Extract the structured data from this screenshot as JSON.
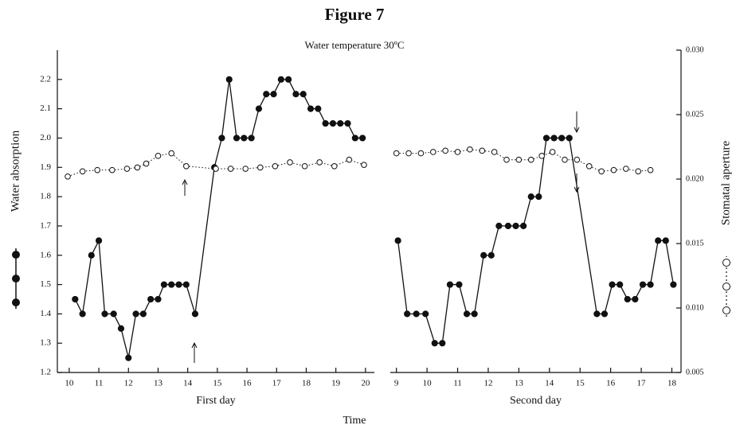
{
  "chart_data": {
    "type": "line",
    "title": "Figure 7",
    "subtitle": "Water temperature 30ºC",
    "xlabel": "Time",
    "ylabel": "Water absorption",
    "y2label": "Stomatal aperture",
    "ylim": [
      1.2,
      2.3
    ],
    "yticks": [
      1.2,
      1.3,
      1.4,
      1.5,
      1.6,
      1.7,
      1.8,
      1.9,
      {
        "value": 2,
        "label": "2.0"
      },
      2.1,
      2.2
    ],
    "y2lim": [
      0.005,
      0.03
    ],
    "y2ticks": [
      {
        "value": 0.005,
        "label": "0.005"
      },
      {
        "value": 0.01,
        "label": "0.010"
      },
      {
        "value": 0.015,
        "label": "0.015"
      },
      {
        "value": 0.02,
        "label": "0.020"
      },
      {
        "value": 0.025,
        "label": "0.025"
      },
      {
        "value": 0.03,
        "label": "0.030"
      }
    ],
    "panels": [
      {
        "xlabel": "First day",
        "xlim": [
          9.6,
          20.3
        ],
        "xticks": [
          10,
          11,
          12,
          13,
          14,
          15,
          16,
          17,
          18,
          19,
          20
        ],
        "series": [
          {
            "color": "#111111",
            "marker": "filled",
            "dash": false,
            "x": [
              10.2,
              10.45,
              10.75,
              11.0,
              11.2,
              11.5,
              11.75,
              12.0,
              12.25,
              12.5,
              12.75,
              13.0,
              13.2,
              13.45,
              13.7,
              13.95,
              14.25,
              14.9,
              15.15,
              15.4,
              15.65,
              15.9,
              16.15,
              16.4,
              16.65,
              16.9,
              17.15,
              17.4,
              17.65,
              17.9,
              18.15,
              18.4,
              18.65,
              18.9,
              19.15,
              19.4,
              19.65,
              19.9
            ],
            "values": [
              1.45,
              1.4,
              1.6,
              1.65,
              1.4,
              1.4,
              1.35,
              1.25,
              1.4,
              1.4,
              1.45,
              1.45,
              1.5,
              1.5,
              1.5,
              1.5,
              1.4,
              1.9,
              2.0,
              2.2,
              2.0,
              2.0,
              2.0,
              2.1,
              2.15,
              2.15,
              2.2,
              2.2,
              2.15,
              2.15,
              2.1,
              2.1,
              2.05,
              2.05,
              2.05,
              2.05,
              2.0,
              2.0
            ]
          },
          {
            "color": "#111111",
            "marker": "open",
            "dash": true,
            "axis": "y2",
            "x": [
              9.95,
              10.45,
              10.95,
              11.45,
              11.95,
              12.3,
              12.6,
              13.0,
              13.45,
              13.95,
              14.95,
              15.45,
              15.95,
              16.45,
              16.95,
              17.45,
              17.95,
              18.45,
              18.95,
              19.45,
              19.95
            ],
            "values": [
              0.0202,
              0.0206,
              0.0207,
              0.0207,
              0.0208,
              0.0209,
              0.0212,
              0.0218,
              0.022,
              0.021,
              0.0208,
              0.0208,
              0.0208,
              0.0209,
              0.021,
              0.0213,
              0.021,
              0.0213,
              0.021,
              0.0215,
              0.0211
            ]
          }
        ]
      },
      {
        "xlabel": "Second day",
        "xlim": [
          8.8,
          18.3
        ],
        "xticks": [
          9,
          10,
          11,
          12,
          13,
          14,
          15,
          16,
          17,
          18
        ],
        "series": [
          {
            "color": "#111111",
            "marker": "filled",
            "dash": false,
            "x": [
              9.05,
              9.35,
              9.65,
              9.95,
              10.25,
              10.5,
              10.75,
              11.05,
              11.3,
              11.55,
              11.85,
              12.1,
              12.35,
              12.65,
              12.9,
              13.15,
              13.4,
              13.65,
              13.9,
              14.15,
              14.4,
              14.65,
              15.55,
              15.8,
              16.05,
              16.3,
              16.55,
              16.8,
              17.05,
              17.3,
              17.55,
              17.8,
              18.05
            ],
            "values": [
              1.65,
              1.4,
              1.4,
              1.4,
              1.3,
              1.3,
              1.5,
              1.5,
              1.4,
              1.4,
              1.6,
              1.6,
              1.7,
              1.7,
              1.7,
              1.7,
              1.8,
              1.8,
              2.0,
              2.0,
              2.0,
              2.0,
              1.4,
              1.4,
              1.5,
              1.5,
              1.45,
              1.45,
              1.5,
              1.5,
              1.65,
              1.65,
              1.5
            ]
          },
          {
            "color": "#111111",
            "marker": "open",
            "dash": true,
            "axis": "y2",
            "x": [
              9.0,
              9.4,
              9.8,
              10.2,
              10.6,
              11.0,
              11.4,
              11.8,
              12.2,
              12.6,
              13.0,
              13.4,
              13.75,
              14.1,
              14.5,
              14.9,
              15.3,
              15.7,
              16.1,
              16.5,
              16.9,
              17.3
            ],
            "values": [
              0.022,
              0.022,
              0.022,
              0.0221,
              0.0222,
              0.0221,
              0.0223,
              0.0222,
              0.0221,
              0.0215,
              0.0215,
              0.0215,
              0.0218,
              0.0221,
              0.0215,
              0.0215,
              0.021,
              0.0206,
              0.0207,
              0.0208,
              0.0206,
              0.0207
            ]
          }
        ]
      }
    ]
  }
}
